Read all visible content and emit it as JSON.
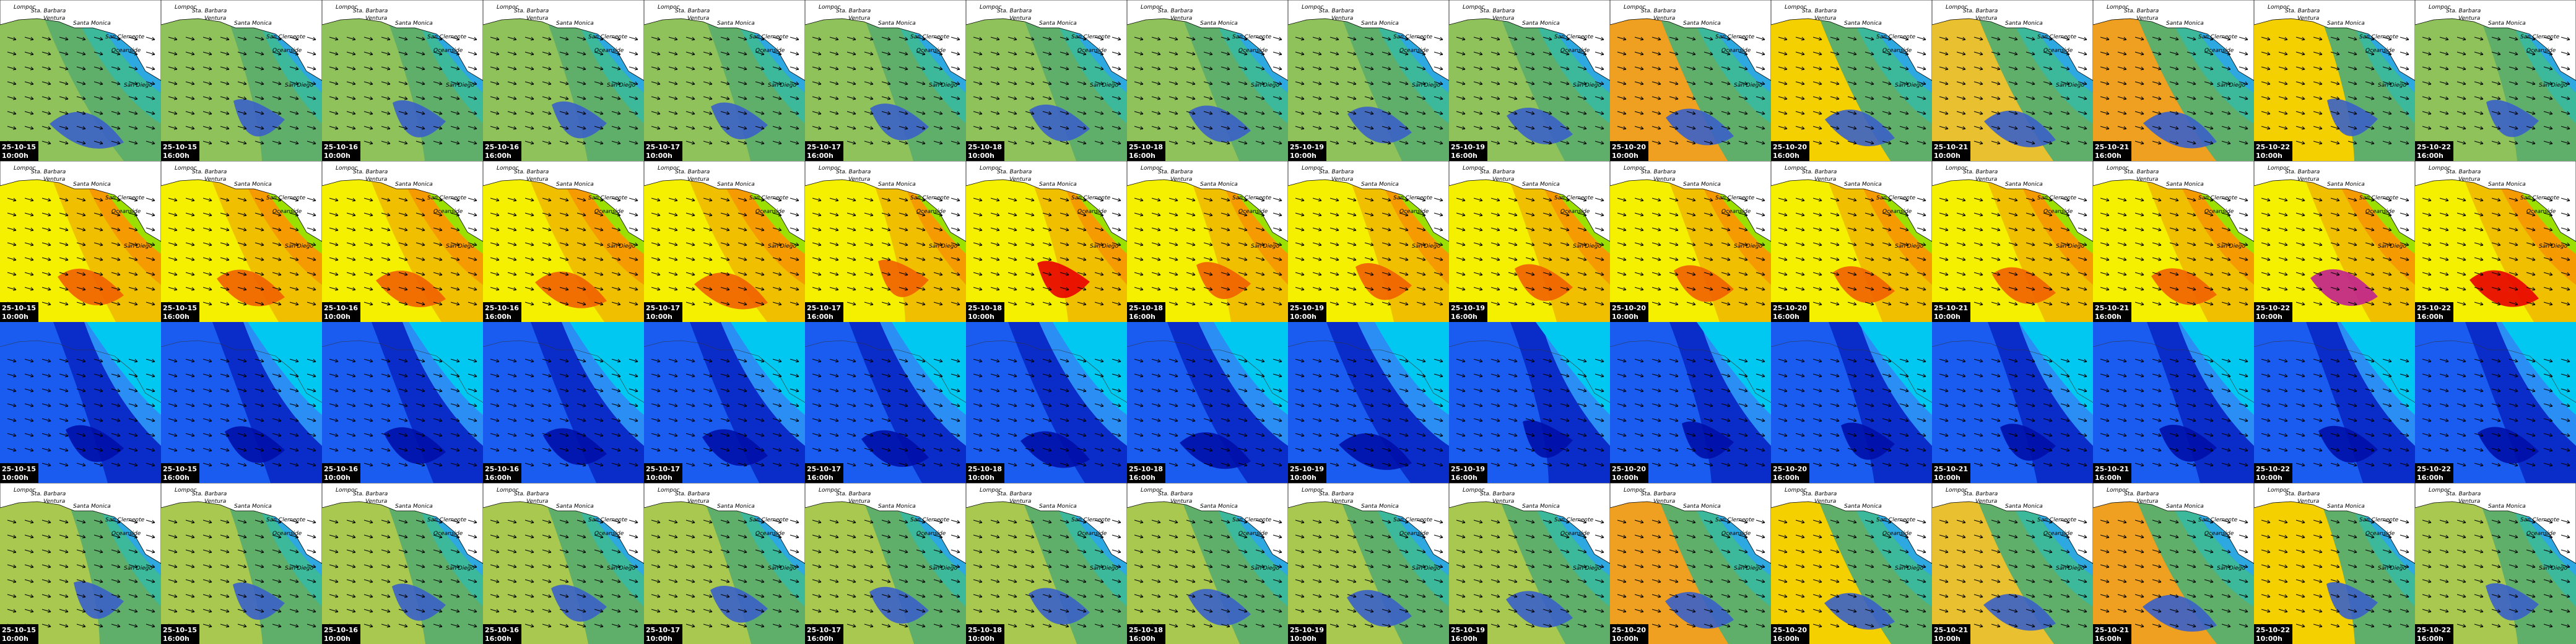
{
  "columns": [
    {
      "date": "25-10-15",
      "time": "10:00h"
    },
    {
      "date": "25-10-15",
      "time": "16:00h"
    },
    {
      "date": "25-10-16",
      "time": "10:00h"
    },
    {
      "date": "25-10-16",
      "time": "16:00h"
    },
    {
      "date": "25-10-17",
      "time": "10:00h"
    },
    {
      "date": "25-10-17",
      "time": "16:00h"
    },
    {
      "date": "25-10-18",
      "time": "10:00h"
    },
    {
      "date": "25-10-18",
      "time": "16:00h"
    },
    {
      "date": "25-10-19",
      "time": "10:00h"
    },
    {
      "date": "25-10-19",
      "time": "16:00h"
    },
    {
      "date": "25-10-20",
      "time": "10:00h"
    },
    {
      "date": "25-10-20",
      "time": "16:00h"
    },
    {
      "date": "25-10-21",
      "time": "10:00h"
    },
    {
      "date": "25-10-21",
      "time": "16:00h"
    },
    {
      "date": "25-10-22",
      "time": "10:00h"
    },
    {
      "date": "25-10-22",
      "time": "16:00h"
    }
  ],
  "places": [
    "Lompoc",
    "Sta. Barbara",
    "Ventura",
    "Santa Monica",
    "San Clemente",
    "Oceanside",
    "San Diego"
  ]
}
